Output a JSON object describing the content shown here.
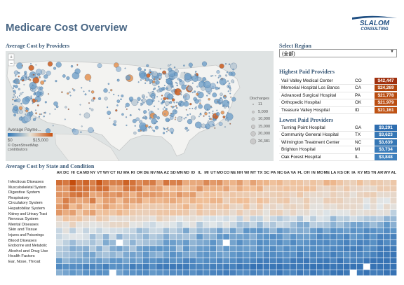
{
  "header": {
    "title": "Medicare Cost Overview",
    "logo_line1": "SLALOM",
    "logo_line2": "CONSULTING"
  },
  "map": {
    "title": "Average Cost  by Providers",
    "discharges_legend": {
      "label": "Discharges",
      "values": [
        "11",
        "5,000",
        "10,000",
        "15,000",
        "20,000",
        "26,381"
      ]
    },
    "avg_legend": {
      "label": "Average Payme...",
      "min": "$0",
      "max": "$15,000"
    },
    "attribution": "© OpenStreetMap contributors"
  },
  "region": {
    "title": "Select Region",
    "selected": "(全部)"
  },
  "highest": {
    "title": "Highest Paid Providers",
    "rows": [
      {
        "name": "Vail Valley Medical Center",
        "state": "CO",
        "value": "$42,447",
        "color": "#a0300e"
      },
      {
        "name": "Memorial Hospital Los Banos",
        "state": "CA",
        "value": "$24,269",
        "color": "#b2470f"
      },
      {
        "name": "Advanced Surgical Hospital",
        "state": "PA",
        "value": "$21,778",
        "color": "#b84c10"
      },
      {
        "name": "Orthopedic Hospital",
        "state": "OK",
        "value": "$21,979",
        "color": "#bb4e12"
      },
      {
        "name": "Treasure Valley Hospital",
        "state": "ID",
        "value": "$21,161",
        "color": "#c05314"
      }
    ]
  },
  "lowest": {
    "title": "Lowest Paid Providers",
    "rows": [
      {
        "name": "Turning Point Hospital",
        "state": "GA",
        "value": "$3,291",
        "color": "#2f6eb0"
      },
      {
        "name": "Community General Hospital",
        "state": "TX",
        "value": "$3,623",
        "color": "#3677b5"
      },
      {
        "name": "Wilmington Treatment Center",
        "state": "NC",
        "value": "$3,639",
        "color": "#3677b5"
      },
      {
        "name": "Brighton Hospital",
        "state": "MI",
        "value": "$3,734",
        "color": "#3b7cba"
      },
      {
        "name": "Oak Forest Hospital",
        "state": "IL",
        "value": "$3,848",
        "color": "#3f80bd"
      }
    ]
  },
  "heatmap": {
    "title": "Average Cost by State and Condition",
    "states": [
      "AK",
      "DC",
      "HI",
      "CA",
      "MD",
      "NY",
      "VT",
      "WY",
      "CT",
      "NJ",
      "WA",
      "RI",
      "OR",
      "DE",
      "NV",
      "MA",
      "AZ",
      "SD",
      "MN",
      "ND",
      "ID",
      "IL",
      "MI",
      "UT",
      "MO",
      "CO",
      "NE",
      "NH",
      "WI",
      "MT",
      "TX",
      "SC",
      "PA",
      "NC",
      "GA",
      "VA",
      "FL",
      "OH",
      "IN",
      "MO",
      "ME",
      "LA",
      "KS",
      "OK",
      "IA",
      "KY",
      "MS",
      "TN",
      "AR",
      "WV",
      "AL"
    ],
    "conditions": [
      "Infectious Diseases",
      "Musculoskeletal System",
      "Digestive System",
      "Respiratory",
      "Circulatory System",
      "Hepatobiliar System",
      "Kidney and Urinary Tract",
      "Nervous System",
      "Mental Diseases",
      "Skin and Tissue",
      "Injures and Poisonings",
      "Blood Diseases",
      "Endocrine and Metabolic",
      "Alcohol and Drug Use",
      "Health Factors",
      "Ear, Nose, Throat"
    ]
  },
  "colors": {
    "high": "#c8500e",
    "low": "#2f77b8",
    "title": "#4a6785"
  }
}
